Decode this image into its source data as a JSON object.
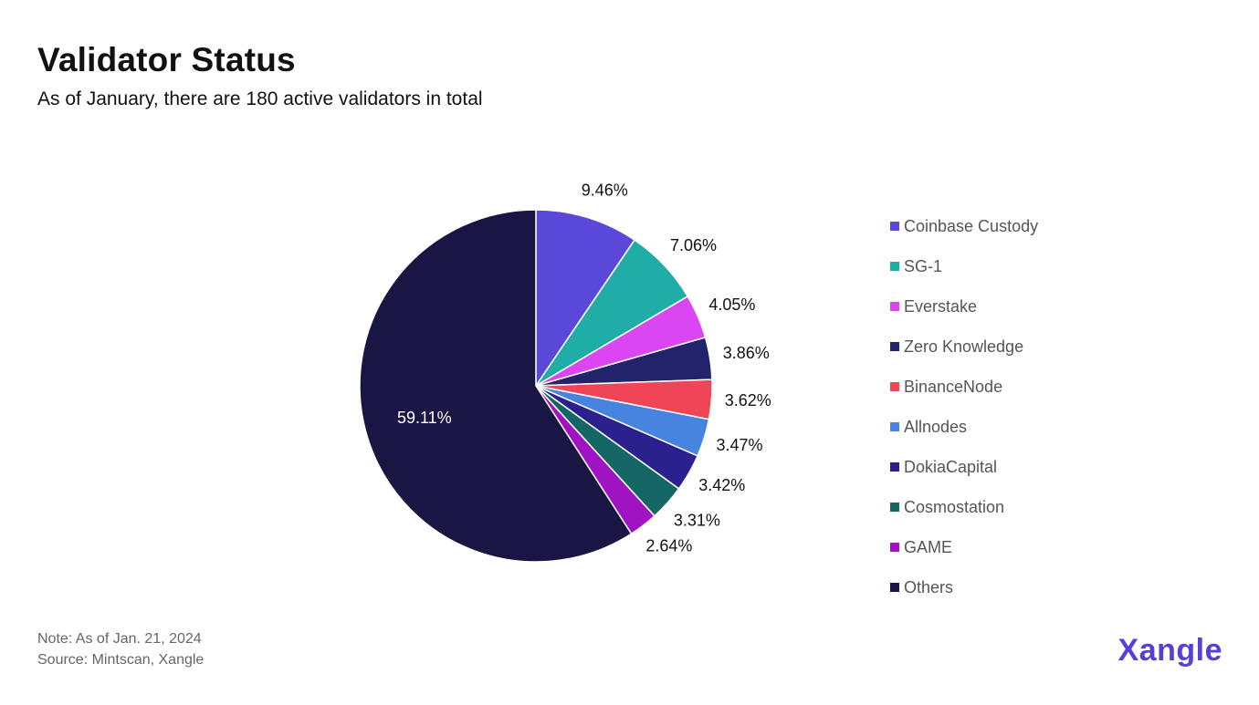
{
  "header": {
    "title": "Validator Status",
    "subtitle": "As of January, there are 180 active validators in total"
  },
  "chart_data": {
    "type": "pie",
    "labels": [
      "Coinbase Custody",
      "SG-1",
      "Everstake",
      "Zero Knowledge",
      "BinanceNode",
      "Allnodes",
      "DokiaCapital",
      "Cosmostation",
      "GAME",
      "Others"
    ],
    "values": [
      9.46,
      7.06,
      4.05,
      3.86,
      3.62,
      3.47,
      3.42,
      3.31,
      2.64,
      59.11
    ],
    "value_labels": [
      "9.46%",
      "7.06%",
      "4.05%",
      "3.86%",
      "3.62%",
      "3.47%",
      "3.42%",
      "3.31%",
      "2.64%",
      "59.11%"
    ],
    "colors": [
      "#5a48d8",
      "#20ada7",
      "#d946f2",
      "#22236b",
      "#f04556",
      "#4784e0",
      "#2a218f",
      "#156766",
      "#a013c3",
      "#1a1643"
    ],
    "start_angle": "12 o'clock",
    "direction": "clockwise",
    "legend_position": "right"
  },
  "footer": {
    "note": "Note: As of Jan. 21, 2024",
    "source": "Source: Mintscan, Xangle"
  },
  "brand": {
    "logo_text": "Xangle",
    "logo_color": "#5a3fd6"
  }
}
